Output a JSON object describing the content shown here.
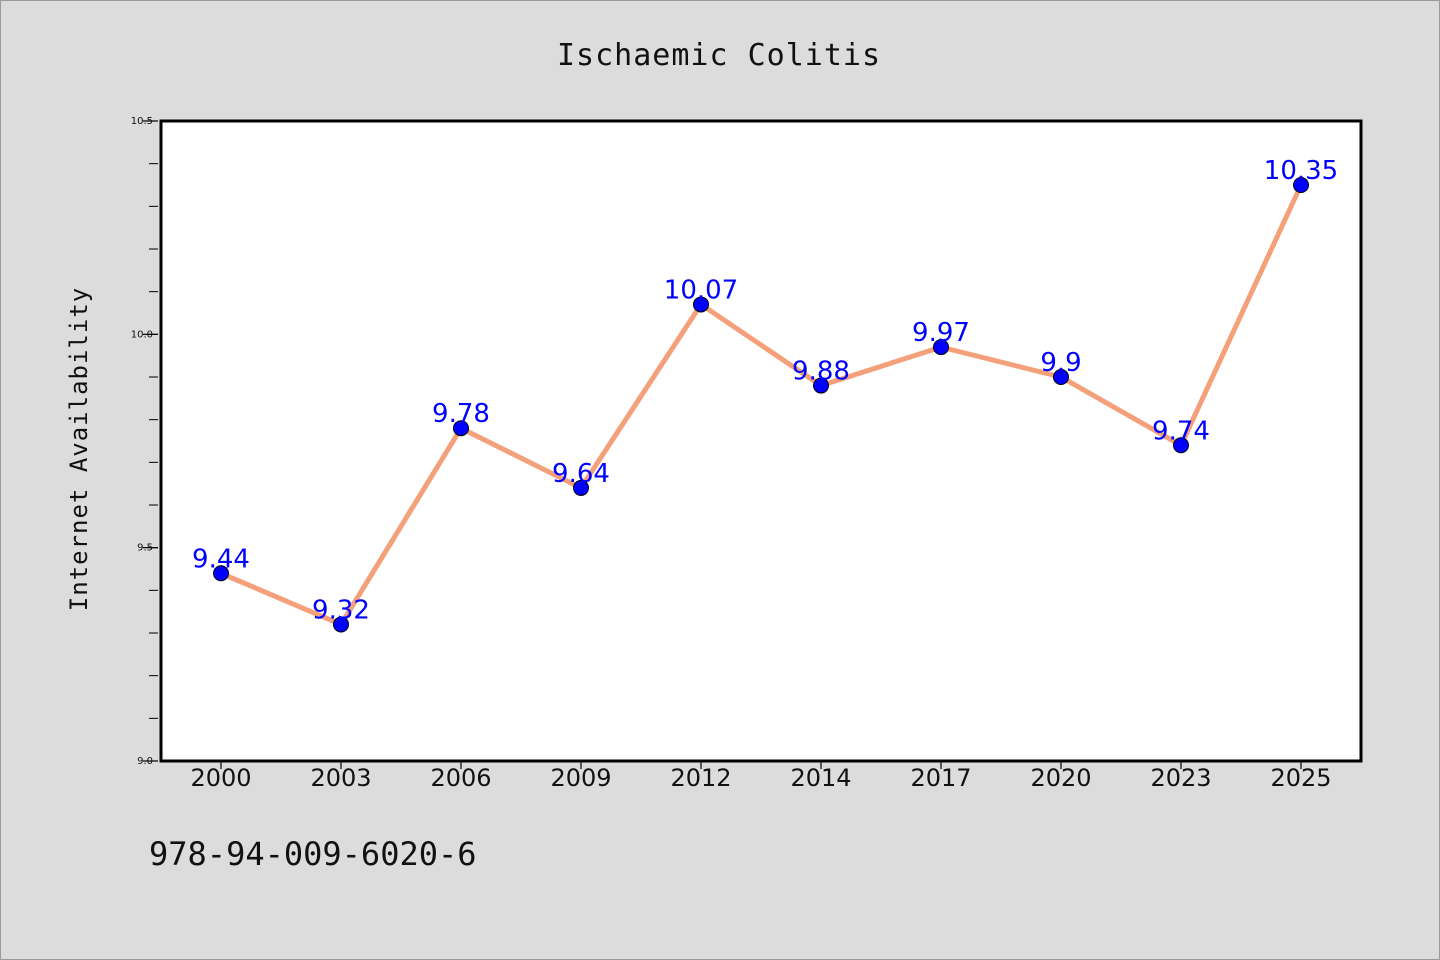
{
  "chart_data": {
    "type": "line",
    "title": "Ischaemic Colitis",
    "xlabel": "",
    "ylabel": "Internet Availability",
    "categories": [
      "2000",
      "2003",
      "2006",
      "2009",
      "2012",
      "2014",
      "2017",
      "2020",
      "2023",
      "2025"
    ],
    "series": [
      {
        "values": [
          9.44,
          9.32,
          9.78,
          9.64,
          10.07,
          9.88,
          9.97,
          9.9,
          9.74,
          10.35
        ]
      }
    ],
    "data_labels": [
      "9.44",
      "9.32",
      "9.78",
      "9.64",
      "10.07",
      "9.88",
      "9.97",
      "9.9",
      "9.74",
      "10.35"
    ],
    "ylim": [
      9.0,
      10.5
    ],
    "yticks": [
      "9.0",
      "9.5",
      "10.0",
      "10.5"
    ],
    "ytick_values": [
      9.0,
      9.5,
      10.0,
      10.5
    ],
    "grid": false,
    "legend": "none",
    "colors": {
      "background": "#dcdcdc",
      "plot_area": "#ffffff",
      "line": "#f4a07a",
      "marker": "#0000ff",
      "data_label": "#0000ff"
    }
  },
  "footer": {
    "isbn": "978-94-009-6020-6"
  }
}
